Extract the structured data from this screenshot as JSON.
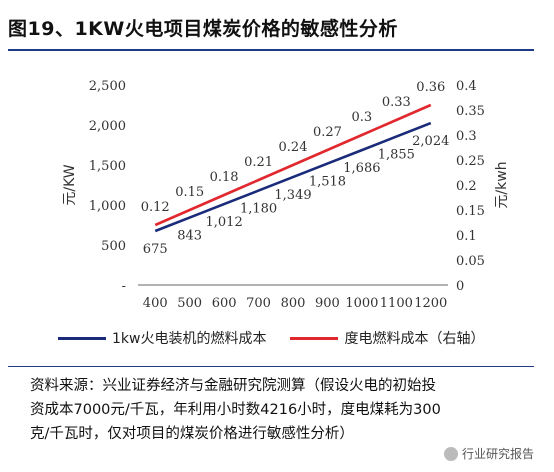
{
  "header": {
    "title": "图19、1KW火电项目煤炭价格的敏感性分析"
  },
  "chart_data": {
    "type": "line",
    "x": [
      400,
      500,
      600,
      700,
      800,
      900,
      1000,
      1100,
      1200
    ],
    "x_tick_labels": [
      "400",
      "500",
      "600",
      "700",
      "800",
      "900",
      "1000",
      "1100",
      "1200"
    ],
    "ylabel_left": "元/KW",
    "ylabel_right": "元/kwh",
    "ylim_left": [
      0,
      2500
    ],
    "ylim_right": [
      0,
      0.4
    ],
    "y_left_ticks": [
      "-",
      "500",
      "1,000",
      "1,500",
      "2,000",
      "2,500"
    ],
    "y_right_ticks": [
      "0",
      "0.05",
      "0.1",
      "0.15",
      "0.2",
      "0.25",
      "0.3",
      "0.35",
      "0.4"
    ],
    "grid": false,
    "legend_position": "bottom",
    "series": [
      {
        "name": "1kw火电装机的燃料成本",
        "axis": "left",
        "color": "#1a2b7a",
        "values": [
          675,
          843,
          1012,
          1180,
          1349,
          1518,
          1686,
          1855,
          2024
        ],
        "labels": [
          "675",
          "843",
          "1,012",
          "1,180",
          "1,349",
          "1,518",
          "1,686",
          "1,855",
          "2,024"
        ]
      },
      {
        "name": "度电燃料成本（右轴）",
        "axis": "right",
        "color": "#e0282e",
        "values": [
          0.12,
          0.15,
          0.18,
          0.21,
          0.24,
          0.27,
          0.3,
          0.33,
          0.36
        ],
        "labels": [
          "0.12",
          "0.15",
          "0.18",
          "0.21",
          "0.24",
          "0.27",
          "0.3",
          "0.33",
          "0.36"
        ]
      }
    ]
  },
  "source": {
    "line1": "资料来源：兴业证券经济与金融研究院测算（假设火电的初始投",
    "line2": "资成本7000元/千瓦，年利用小时数4216小时，度电煤耗为300",
    "line3": "克/千瓦时，仅对项目的煤炭价格进行敏感性分析）"
  },
  "watermark": {
    "text": "行业研究报告",
    "icon": "wechat-icon"
  }
}
